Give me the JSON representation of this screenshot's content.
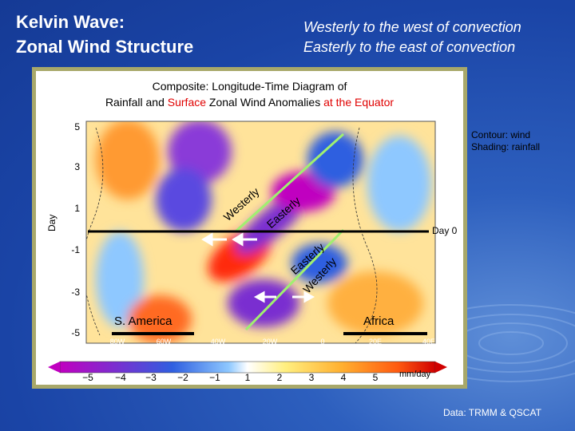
{
  "header": {
    "title_lines": [
      "Kelvin Wave:",
      "Zonal Wind Structure"
    ],
    "notes": [
      "Westerly to the west of convection",
      "Easterly to the east of convection"
    ]
  },
  "figure": {
    "title_line1": "Composite: Longitude-Time Diagram of",
    "title_line2": [
      "Rainfall and",
      "Surface",
      "Zonal Wind Anomalies",
      "at the Equator"
    ],
    "legend": [
      "Contour: wind",
      "Shading: rainfall"
    ],
    "y_axis": {
      "label": "Day",
      "ticks": [
        "5",
        "3",
        "1",
        "-1",
        "-3",
        "-5"
      ]
    },
    "x_axis": {
      "ticks": [
        "80W",
        "60W",
        "40W",
        "20W",
        "0",
        "20E",
        "40E"
      ]
    },
    "day0_label": "Day 0",
    "regions": [
      "S. America",
      "Africa"
    ],
    "wind_labels": [
      "Westerly",
      "Easterly",
      "Easterly",
      "Westerly"
    ],
    "colorbar": {
      "labels": [
        "−5",
        "−4",
        "−3",
        "−2",
        "−1",
        "1",
        "2",
        "3",
        "4",
        "5"
      ],
      "units": "mm/day"
    }
  },
  "footer": "Data: TRMM & QSCAT"
}
